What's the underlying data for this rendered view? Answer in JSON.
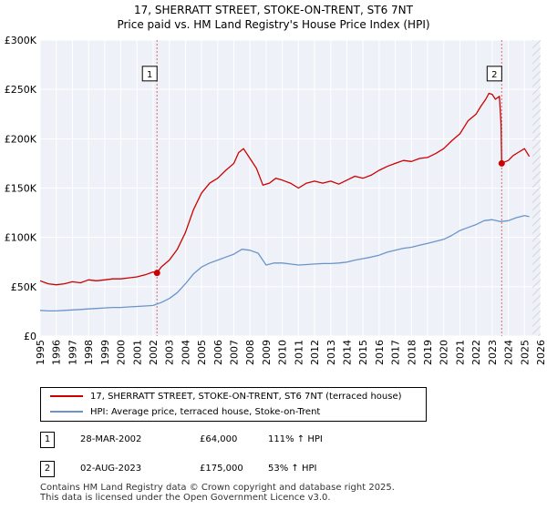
{
  "chart_data": {
    "type": "line",
    "title": "17, SHERRATT STREET, STOKE-ON-TRENT, ST6 7NT",
    "subtitle": "Price paid vs. HM Land Registry's House Price Index (HPI)",
    "xlabel": "",
    "ylabel": "",
    "xlim": [
      1995,
      2026
    ],
    "ylim": [
      0,
      300000
    ],
    "x_ticks": [
      "1995",
      "1996",
      "1997",
      "1998",
      "1999",
      "2000",
      "2001",
      "2002",
      "2003",
      "2004",
      "2005",
      "2006",
      "2007",
      "2008",
      "2009",
      "2010",
      "2011",
      "2012",
      "2013",
      "2014",
      "2015",
      "2016",
      "2017",
      "2018",
      "2019",
      "2020",
      "2021",
      "2022",
      "2023",
      "2024",
      "2025",
      "2026"
    ],
    "y_ticks": [
      {
        "value": 0,
        "label": "£0"
      },
      {
        "value": 50000,
        "label": "£50K"
      },
      {
        "value": 100000,
        "label": "£100K"
      },
      {
        "value": 150000,
        "label": "£150K"
      },
      {
        "value": 200000,
        "label": "£200K"
      },
      {
        "value": 250000,
        "label": "£250K"
      },
      {
        "value": 300000,
        "label": "£300K"
      }
    ],
    "grid": true,
    "hatched_from": 2025.5,
    "series": [
      {
        "name": "17, SHERRATT STREET, STOKE-ON-TRENT, ST6 7NT (terraced house)",
        "color": "#cc0000",
        "x": [
          1995.0,
          1995.5,
          1996.0,
          1996.5,
          1997.0,
          1997.5,
          1998.0,
          1998.5,
          1999.0,
          1999.5,
          2000.0,
          2000.5,
          2001.0,
          2001.5,
          2002.0,
          2002.24,
          2002.5,
          2003.0,
          2003.5,
          2004.0,
          2004.5,
          2005.0,
          2005.5,
          2006.0,
          2006.5,
          2007.0,
          2007.3,
          2007.6,
          2008.0,
          2008.4,
          2008.8,
          2009.2,
          2009.6,
          2010.0,
          2010.5,
          2011.0,
          2011.5,
          2012.0,
          2012.5,
          2013.0,
          2013.5,
          2014.0,
          2014.5,
          2015.0,
          2015.5,
          2016.0,
          2016.5,
          2017.0,
          2017.5,
          2018.0,
          2018.5,
          2019.0,
          2019.5,
          2020.0,
          2020.5,
          2021.0,
          2021.5,
          2022.0,
          2022.3,
          2022.6,
          2022.8,
          2023.0,
          2023.2,
          2023.45,
          2023.55,
          2023.59,
          2023.7,
          2024.0,
          2024.3,
          2024.6,
          2025.0,
          2025.3
        ],
        "values": [
          56000,
          53000,
          52000,
          53000,
          55000,
          54000,
          57000,
          56000,
          57000,
          58000,
          58000,
          59000,
          60000,
          62000,
          65000,
          64000,
          70000,
          77000,
          88000,
          105000,
          128000,
          145000,
          155000,
          160000,
          168000,
          175000,
          186000,
          190000,
          180000,
          170000,
          153000,
          155000,
          160000,
          158000,
          155000,
          150000,
          155000,
          157000,
          155000,
          157000,
          154000,
          158000,
          162000,
          160000,
          163000,
          168000,
          172000,
          175000,
          178000,
          177000,
          180000,
          181000,
          185000,
          190000,
          198000,
          205000,
          218000,
          225000,
          233000,
          240000,
          246000,
          245000,
          240000,
          243000,
          215000,
          175000,
          176000,
          178000,
          183000,
          186000,
          190000,
          182000
        ]
      },
      {
        "name": "HPI: Average price, terraced house, Stoke-on-Trent",
        "color": "#6a95cc",
        "x": [
          1995.0,
          1995.5,
          1996.0,
          1996.5,
          1997.0,
          1997.5,
          1998.0,
          1998.5,
          1999.0,
          1999.5,
          2000.0,
          2000.5,
          2001.0,
          2001.5,
          2002.0,
          2002.5,
          2003.0,
          2003.5,
          2004.0,
          2004.5,
          2005.0,
          2005.5,
          2006.0,
          2006.5,
          2007.0,
          2007.5,
          2008.0,
          2008.5,
          2009.0,
          2009.5,
          2010.0,
          2010.5,
          2011.0,
          2011.5,
          2012.0,
          2012.5,
          2013.0,
          2013.5,
          2014.0,
          2014.5,
          2015.0,
          2015.5,
          2016.0,
          2016.5,
          2017.0,
          2017.5,
          2018.0,
          2018.5,
          2019.0,
          2019.5,
          2020.0,
          2020.5,
          2021.0,
          2021.5,
          2022.0,
          2022.5,
          2023.0,
          2023.5,
          2024.0,
          2024.5,
          2025.0,
          2025.3
        ],
        "values": [
          26000,
          25500,
          25500,
          26000,
          26500,
          27000,
          27500,
          28000,
          28500,
          29000,
          29000,
          29500,
          30000,
          30500,
          31000,
          34000,
          38000,
          44000,
          53000,
          63000,
          70000,
          74000,
          77000,
          80000,
          83000,
          88000,
          87000,
          84000,
          72000,
          74000,
          74000,
          73000,
          72000,
          72500,
          73000,
          73500,
          73500,
          74000,
          75000,
          77000,
          78500,
          80000,
          82000,
          85000,
          87000,
          89000,
          90000,
          92000,
          94000,
          96000,
          98000,
          102000,
          107000,
          110000,
          113000,
          117000,
          118000,
          116000,
          117000,
          120000,
          122000,
          121000
        ]
      }
    ],
    "transactions": [
      {
        "label": "1",
        "date": "28-MAR-2002",
        "price": "£64,000",
        "hpi": "111% ↑ HPI",
        "x": 2002.24,
        "value": 64000
      },
      {
        "label": "2",
        "date": "02-AUG-2023",
        "price": "£175,000",
        "hpi": "53% ↑ HPI",
        "x": 2023.59,
        "value": 175000
      }
    ]
  },
  "footer": {
    "line1": "Contains HM Land Registry data © Crown copyright and database right 2025.",
    "line2": "This data is licensed under the Open Government Licence v3.0."
  }
}
